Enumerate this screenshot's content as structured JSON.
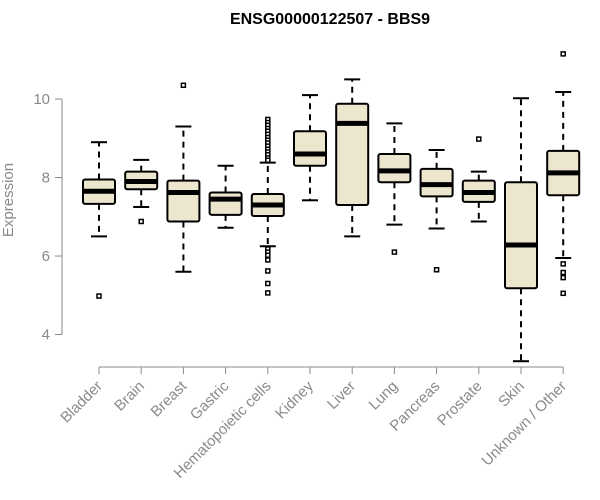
{
  "chart_data": {
    "type": "box",
    "title": "ENSG00000122507 - BBS9",
    "ylabel": "Expression",
    "xlabel": "",
    "ylim": [
      3.3,
      11.3
    ],
    "yticks": [
      4,
      6,
      8,
      10
    ],
    "colors": {
      "box_fill": "#ede6cf",
      "stroke": "#000000",
      "axis": "#8a8a8a"
    },
    "categories": [
      "Bladder",
      "Brain",
      "Breast",
      "Gastric",
      "Hematopoietic cells",
      "Kidney",
      "Liver",
      "Lung",
      "Pancreas",
      "Prostate",
      "Skin",
      "Unknown / Other"
    ],
    "boxes": [
      {
        "label": "Bladder",
        "q1": 7.33,
        "median": 7.65,
        "q3": 7.95,
        "whisker_low": 6.5,
        "whisker_high": 8.9,
        "outliers": [
          4.98
        ]
      },
      {
        "label": "Brain",
        "q1": 7.7,
        "median": 7.9,
        "q3": 8.15,
        "whisker_low": 7.25,
        "whisker_high": 8.45,
        "outliers": [
          6.88
        ]
      },
      {
        "label": "Breast",
        "q1": 6.88,
        "median": 7.62,
        "q3": 7.92,
        "whisker_low": 5.6,
        "whisker_high": 9.3,
        "outliers": [
          10.35
        ]
      },
      {
        "label": "Gastric",
        "q1": 7.05,
        "median": 7.45,
        "q3": 7.62,
        "whisker_low": 6.72,
        "whisker_high": 8.3,
        "outliers": []
      },
      {
        "label": "Hematopoietic cells",
        "q1": 7.02,
        "median": 7.3,
        "q3": 7.58,
        "whisker_low": 6.25,
        "whisker_high": 8.38,
        "outliers": [
          9.48,
          9.4,
          9.33,
          9.25,
          9.18,
          9.1,
          9.02,
          8.95,
          8.88,
          8.8,
          8.72,
          8.65,
          8.58,
          8.5,
          8.44,
          6.18,
          6.1,
          6.02,
          5.9,
          5.62,
          5.3,
          5.06
        ]
      },
      {
        "label": "Kidney",
        "q1": 8.3,
        "median": 8.6,
        "q3": 9.18,
        "whisker_low": 7.42,
        "whisker_high": 10.1,
        "outliers": []
      },
      {
        "label": "Liver",
        "q1": 7.3,
        "median": 9.38,
        "q3": 9.88,
        "whisker_low": 6.5,
        "whisker_high": 10.5,
        "outliers": []
      },
      {
        "label": "Lung",
        "q1": 7.88,
        "median": 8.17,
        "q3": 8.6,
        "whisker_low": 6.8,
        "whisker_high": 9.38,
        "outliers": [
          6.1
        ]
      },
      {
        "label": "Pancreas",
        "q1": 7.52,
        "median": 7.82,
        "q3": 8.22,
        "whisker_low": 6.7,
        "whisker_high": 8.7,
        "outliers": [
          5.65
        ]
      },
      {
        "label": "Prostate",
        "q1": 7.38,
        "median": 7.62,
        "q3": 7.92,
        "whisker_low": 6.88,
        "whisker_high": 8.15,
        "outliers": [
          8.98
        ]
      },
      {
        "label": "Skin",
        "q1": 5.18,
        "median": 6.28,
        "q3": 7.88,
        "whisker_low": 3.32,
        "whisker_high": 10.02,
        "outliers": []
      },
      {
        "label": "Unknown / Other",
        "q1": 7.55,
        "median": 8.12,
        "q3": 8.68,
        "whisker_low": 5.95,
        "whisker_high": 10.18,
        "outliers": [
          11.15,
          5.8,
          5.58,
          5.45,
          5.05
        ]
      }
    ],
    "grid": false,
    "legend": "none"
  }
}
